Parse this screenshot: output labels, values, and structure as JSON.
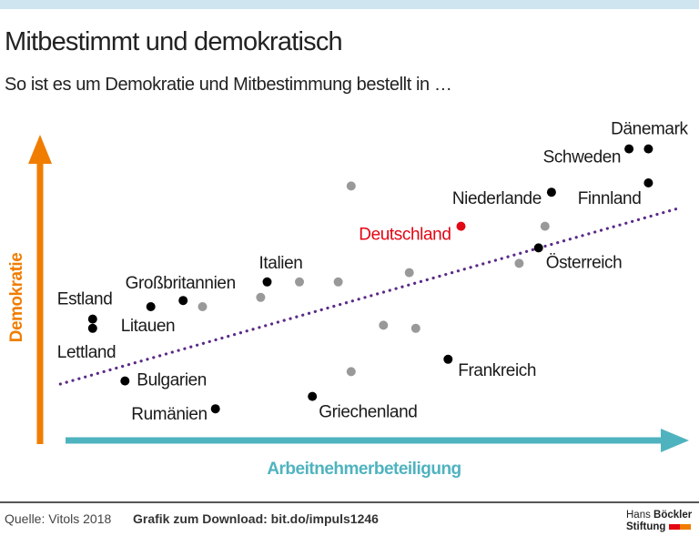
{
  "header": {
    "title": "Mitbestimmt und demokratisch",
    "subtitle": "So ist es um Demokratie und Mitbestimmung bestellt in …"
  },
  "chart_data": {
    "type": "scatter",
    "xlabel": "Arbeitnehmerbeteiligung",
    "ylabel": "Demokratie",
    "xlim": [
      0,
      100
    ],
    "ylim": [
      0,
      100
    ],
    "grid": false,
    "axis_ticks": false,
    "colors": {
      "labeled": "#000000",
      "highlight": "#e30613",
      "unlabeled": "#999999",
      "trend": "#5b2a86",
      "x_axis": "#4fb3bf",
      "y_axis": "#f07d00"
    },
    "labeled_points": [
      {
        "name": "Dänemark",
        "x": 94,
        "y": 96
      },
      {
        "name": "Schweden",
        "x": 91,
        "y": 96
      },
      {
        "name": "Niederlande",
        "x": 79,
        "y": 82
      },
      {
        "name": "Finnland",
        "x": 94,
        "y": 85
      },
      {
        "name": "Österreich",
        "x": 77,
        "y": 64
      },
      {
        "name": "Deutschland",
        "x": 65,
        "y": 71,
        "highlight": true
      },
      {
        "name": "Italien",
        "x": 35,
        "y": 53
      },
      {
        "name": "Großbritannien",
        "x": 22,
        "y": 47
      },
      {
        "name": "Litauen",
        "x": 17,
        "y": 45
      },
      {
        "name": "Estland",
        "x": 8,
        "y": 41
      },
      {
        "name": "Lettland",
        "x": 8,
        "y": 38
      },
      {
        "name": "Bulgarien",
        "x": 13,
        "y": 21
      },
      {
        "name": "Rumänien",
        "x": 27,
        "y": 12
      },
      {
        "name": "Griechenland",
        "x": 42,
        "y": 16
      },
      {
        "name": "Frankreich",
        "x": 63,
        "y": 28
      }
    ],
    "unlabeled_points": [
      {
        "x": 48,
        "y": 84
      },
      {
        "x": 78,
        "y": 71
      },
      {
        "x": 74,
        "y": 59
      },
      {
        "x": 57,
        "y": 56
      },
      {
        "x": 40,
        "y": 53
      },
      {
        "x": 46,
        "y": 53
      },
      {
        "x": 34,
        "y": 48
      },
      {
        "x": 25,
        "y": 45
      },
      {
        "x": 53,
        "y": 39
      },
      {
        "x": 58,
        "y": 38
      },
      {
        "x": 48,
        "y": 24
      }
    ],
    "trend_line": [
      [
        3,
        20
      ],
      [
        99,
        77
      ]
    ]
  },
  "footer": {
    "source": "Quelle: Vitols 2018",
    "download": "Grafik zum Download: bit.do/impuls1246",
    "logo_text": "Hans Böckler Stiftung"
  }
}
